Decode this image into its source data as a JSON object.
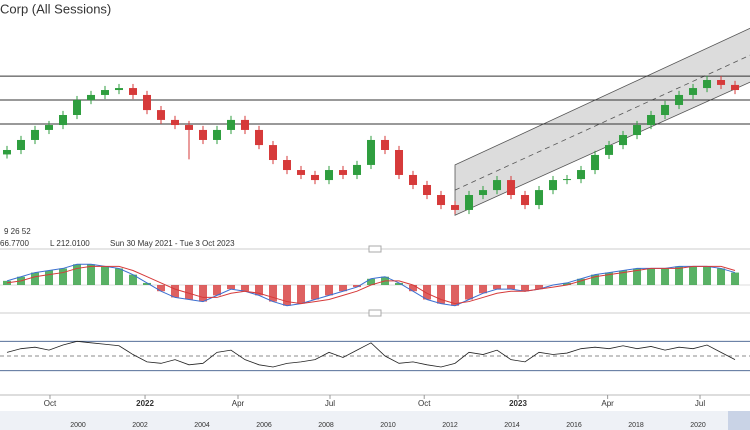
{
  "chart_data": {
    "type": "candlestick",
    "title": "Corp (All Sessions)",
    "indicator_params": "9 26 52",
    "info_high": "66.7700",
    "info_low": "L 212.0100",
    "date_range": "Sun 30 May 2021 - Tue 3 Oct 2023",
    "xlim": [
      -0.5,
      53.07
    ],
    "xticks": [
      {
        "value": 3.07,
        "label": "Oct"
      },
      {
        "value": 9.86,
        "label": "2022"
      },
      {
        "value": 16.5,
        "label": "Apr"
      },
      {
        "value": 23.07,
        "label": "Jul"
      },
      {
        "value": 29.8,
        "label": "Oct"
      },
      {
        "value": 36.5,
        "label": "2023"
      },
      {
        "value": 42.9,
        "label": "Apr"
      },
      {
        "value": 49.5,
        "label": "Jul"
      }
    ],
    "ylim": [
      200,
      340
    ],
    "open": [
      246.0,
      248.7,
      254.8,
      260.9,
      263.9,
      270.0,
      279.1,
      282.2,
      285.2,
      286.4,
      282.2,
      273.0,
      267.0,
      263.9,
      260.9,
      254.8,
      260.9,
      267.0,
      260.9,
      251.7,
      242.6,
      236.5,
      233.5,
      230.4,
      236.5,
      233.5,
      239.6,
      254.8,
      248.7,
      233.5,
      227.4,
      221.3,
      215.2,
      212.2,
      221.3,
      224.3,
      230.4,
      221.3,
      215.2,
      224.3,
      230.4,
      231.0,
      236.5,
      245.7,
      251.7,
      257.8,
      263.9,
      270.0,
      276.1,
      282.2,
      286.4,
      291.3,
      288.3
    ],
    "high": [
      251.2,
      257.3,
      263.4,
      266.4,
      272.5,
      281.6,
      284.7,
      287.7,
      288.9,
      288.9,
      284.7,
      275.5,
      269.5,
      266.4,
      263.4,
      263.4,
      269.5,
      269.5,
      263.4,
      254.2,
      245.1,
      239.0,
      236.0,
      239.0,
      239.0,
      242.1,
      257.3,
      257.3,
      251.2,
      236.0,
      229.9,
      223.8,
      217.7,
      223.8,
      226.8,
      232.9,
      232.9,
      223.8,
      226.8,
      232.9,
      233.5,
      239.0,
      248.2,
      254.2,
      260.3,
      266.4,
      272.5,
      278.6,
      284.7,
      288.9,
      293.8,
      293.8,
      290.8
    ],
    "low": [
      243.5,
      246.2,
      252.3,
      258.4,
      261.4,
      267.5,
      276.6,
      279.7,
      282.7,
      279.7,
      270.5,
      264.5,
      261.4,
      243.0,
      252.3,
      252.3,
      258.4,
      258.4,
      249.2,
      240.1,
      234.0,
      231.0,
      227.9,
      227.9,
      231.0,
      231.0,
      237.1,
      246.2,
      231.0,
      224.9,
      218.8,
      212.7,
      209.7,
      209.7,
      218.8,
      221.8,
      218.8,
      212.7,
      212.7,
      221.8,
      227.9,
      228.5,
      234.0,
      243.2,
      249.2,
      255.3,
      261.4,
      267.5,
      273.6,
      279.7,
      283.9,
      285.8,
      282.7
    ],
    "close": [
      248.7,
      254.8,
      260.9,
      263.9,
      270.0,
      279.1,
      282.2,
      285.2,
      286.4,
      282.2,
      273.0,
      267.0,
      263.9,
      260.9,
      254.8,
      260.9,
      267.0,
      260.9,
      251.7,
      242.6,
      236.5,
      233.5,
      230.4,
      236.5,
      233.5,
      239.6,
      254.8,
      248.7,
      233.5,
      227.4,
      221.3,
      215.2,
      212.2,
      221.3,
      224.3,
      230.4,
      221.3,
      215.2,
      224.3,
      230.4,
      231.0,
      236.5,
      245.7,
      251.7,
      257.8,
      263.9,
      270.0,
      276.1,
      282.2,
      286.4,
      291.3,
      288.3,
      285.2
    ],
    "up_color": "#2f9e3f",
    "down_color": "#d63a3a",
    "levels": [
      293.7,
      279.1,
      264.5
    ],
    "channel": {
      "x": [
        32,
        53.1
      ],
      "lower": [
        209,
        290.1
      ],
      "upper": [
        239.6,
        322.9
      ],
      "color": "#9a9a9a"
    },
    "macd_ylim": [
      -14,
      14
    ],
    "macd": [
      2,
      4,
      6,
      7,
      8,
      10,
      10,
      9,
      8,
      5,
      1,
      -3,
      -6,
      -7,
      -8,
      -5,
      -2,
      -3,
      -5,
      -8,
      -10,
      -9,
      -7,
      -5,
      -3,
      -1,
      3,
      4,
      1,
      -3,
      -7,
      -9,
      -10,
      -7,
      -4,
      -2,
      -2,
      -3,
      -2,
      0,
      1,
      3,
      5,
      6,
      7,
      8,
      8,
      8,
      9,
      9,
      9,
      8,
      6
    ],
    "signal": [
      1,
      2,
      4,
      5,
      6,
      8,
      9,
      9,
      9,
      7,
      4,
      1,
      -2,
      -4,
      -6,
      -6,
      -4,
      -3,
      -4,
      -6,
      -8,
      -9,
      -8,
      -7,
      -5,
      -3,
      0,
      2,
      2,
      0,
      -4,
      -7,
      -9,
      -8,
      -6,
      -4,
      -3,
      -3,
      -2,
      -1,
      0,
      2,
      4,
      5,
      6,
      7,
      8,
      8,
      8,
      9,
      9,
      9,
      7
    ],
    "macd_color": "#3b6fd1",
    "signal_color": "#d63a3a",
    "osc_ylim": [
      20,
      80
    ],
    "osc_levels": [
      70,
      50,
      30
    ],
    "osc": [
      55,
      60,
      62,
      58,
      65,
      70,
      68,
      66,
      64,
      52,
      42,
      40,
      45,
      38,
      40,
      55,
      58,
      45,
      38,
      35,
      40,
      42,
      45,
      55,
      48,
      58,
      68,
      50,
      40,
      42,
      38,
      35,
      40,
      55,
      52,
      58,
      45,
      42,
      55,
      52,
      54,
      60,
      62,
      60,
      64,
      60,
      63,
      58,
      62,
      60,
      65,
      55,
      45
    ],
    "navigator_years": [
      "2000",
      "2002",
      "2004",
      "2006",
      "2008",
      "2010",
      "2012",
      "2014",
      "2016",
      "2018",
      "2020"
    ]
  }
}
